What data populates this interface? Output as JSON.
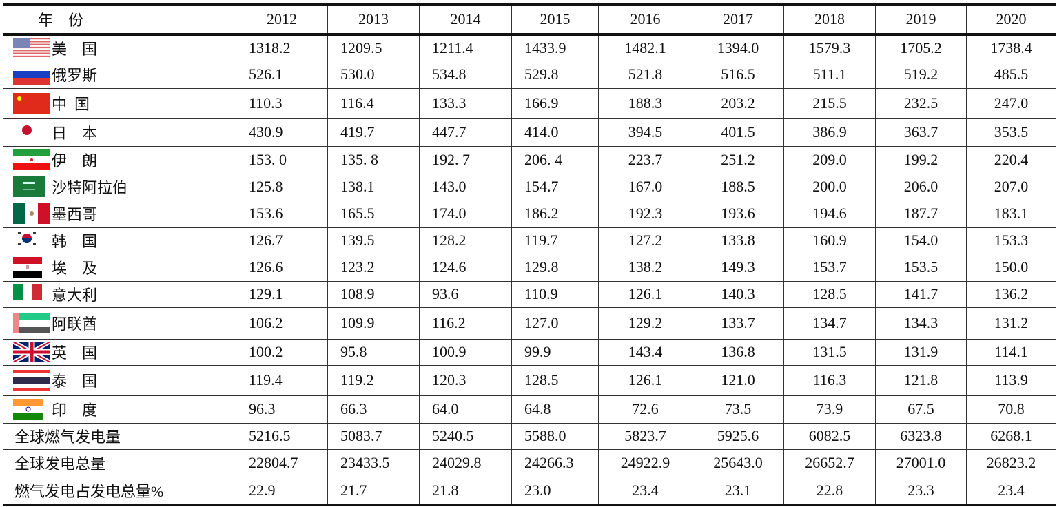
{
  "table": {
    "header_label": "年    份",
    "years": [
      "2012",
      "2013",
      "2014",
      "2015",
      "2016",
      "2017",
      "2018",
      "2019",
      "2020"
    ],
    "rows": [
      {
        "name": "美    国",
        "flag": "usa-flag",
        "values": [
          "1318.2",
          "1209.5",
          "1211.4",
          "1433.9",
          "1482.1",
          "1394.0",
          "1579.3",
          "1705.2",
          "1738.4"
        ]
      },
      {
        "name": "俄罗斯",
        "flag": "russia-flag",
        "values": [
          "526.1",
          "530.0",
          "534.8",
          "529.8",
          "521.8",
          "516.5",
          "511.1",
          "519.2",
          "485.5"
        ]
      },
      {
        "name": "中  国",
        "flag": "china-flag",
        "values": [
          "110.3",
          "116.4",
          "133.3",
          "166.9",
          "188.3",
          "203.2",
          "215.5",
          "232.5",
          "247.0"
        ]
      },
      {
        "name": "日    本",
        "flag": "japan-flag",
        "values": [
          "430.9",
          "419.7",
          "447.7",
          "414.0",
          "394.5",
          "401.5",
          "386.9",
          "363.7",
          "353.5"
        ]
      },
      {
        "name": "伊    朗",
        "flag": "iran-flag",
        "values": [
          "153. 0",
          "135. 8",
          "192. 7",
          "206. 4",
          "223.7",
          "251.2",
          "209.0",
          "199.2",
          "220.4"
        ]
      },
      {
        "name": "沙特阿拉伯",
        "flag": "saudi-arabia-flag",
        "values": [
          "125.8",
          "138.1",
          "143.0",
          "154.7",
          "167.0",
          "188.5",
          "200.0",
          "206.0",
          "207.0"
        ]
      },
      {
        "name": "墨西哥",
        "flag": "mexico-flag",
        "values": [
          "153.6",
          "165.5",
          "174.0",
          "186.2",
          "192.3",
          "193.6",
          "194.6",
          "187.7",
          "183.1"
        ]
      },
      {
        "name": "韩    国",
        "flag": "south-korea-flag",
        "values": [
          "126.7",
          "139.5",
          "128.2",
          "119.7",
          "127.2",
          "133.8",
          "160.9",
          "154.0",
          "153.3"
        ]
      },
      {
        "name": "埃    及",
        "flag": "egypt-flag",
        "values": [
          "126.6",
          "123.2",
          "124.6",
          "129.8",
          "138.2",
          "149.3",
          "153.7",
          "153.5",
          "150.0"
        ]
      },
      {
        "name": "意大利",
        "flag": "italy-flag",
        "values": [
          "129.1",
          "108.9",
          "93.6",
          "110.9",
          "126.1",
          "140.3",
          "128.5",
          "141.7",
          "136.2"
        ]
      },
      {
        "name": "阿联酋",
        "flag": "uae-flag",
        "values": [
          "106.2",
          "109.9",
          "116.2",
          "127.0",
          "129.2",
          "133.7",
          "134.7",
          "134.3",
          "131.2"
        ]
      },
      {
        "name": "英    国",
        "flag": "uk-flag",
        "values": [
          "100.2",
          "95.8",
          "100.9",
          "99.9",
          "143.4",
          "136.8",
          "131.5",
          "131.9",
          "114.1"
        ]
      },
      {
        "name": "泰    国",
        "flag": "thailand-flag",
        "values": [
          "119.4",
          "119.2",
          "120.3",
          "128.5",
          "126.1",
          "121.0",
          "116.3",
          "121.8",
          "113.9"
        ]
      },
      {
        "name": "印    度",
        "flag": "india-flag",
        "values": [
          "96.3",
          "66.3",
          "64.0",
          "64.8",
          "72.6",
          "73.5",
          "73.9",
          "67.5",
          "70.8"
        ]
      },
      {
        "name": "全球燃气发电量",
        "flag": null,
        "values": [
          "5216.5",
          "5083.7",
          "5240.5",
          "5588.0",
          "5823.7",
          "5925.6",
          "6082.5",
          "6323.8",
          "6268.1"
        ]
      },
      {
        "name": "全球发电总量",
        "flag": null,
        "values": [
          "22804.7",
          "23433.5",
          "24029.8",
          "24266.3",
          "24922.9",
          "25643.0",
          "26652.7",
          "27001.0",
          "26823.2"
        ]
      },
      {
        "name": "燃气发电占发电总量%",
        "flag": null,
        "values": [
          "22.9",
          "21.7",
          "21.8",
          "23.0",
          "23.4",
          "23.1",
          "22.8",
          "23.3",
          "23.4"
        ]
      }
    ]
  }
}
